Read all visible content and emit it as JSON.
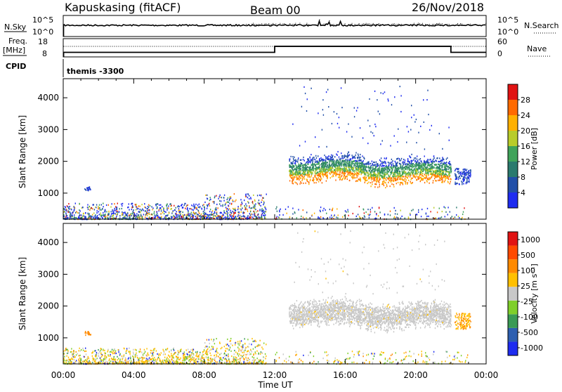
{
  "header": {
    "station": "Kapuskasing (fitACF)",
    "beam": "Beam 00",
    "date": "26/Nov/2018"
  },
  "labels": {
    "nsky": "N.Sky",
    "nsearch": "N.Search",
    "freq_line1": "Freq.",
    "freq_line2": "[MHz]",
    "nave": "Nave",
    "cpid": "CPID",
    "cpid_value": "themis -3300",
    "slant_range": "Slant Range [km]",
    "time_axis": "Time UT",
    "power_cb": "Power [dB]",
    "velocity_cb": "Velocity [m s⁻¹]"
  },
  "chart_data": [
    {
      "type": "line",
      "name": "noise-panel",
      "ylim_left_labels": [
        "10^5",
        "10^0"
      ],
      "ylim_right_labels": [
        "10^5",
        "10^0"
      ],
      "series": [
        {
          "name": "N.Sky",
          "style": "solid"
        },
        {
          "name": "N.Search",
          "style": "dotted"
        }
      ]
    },
    {
      "type": "line",
      "name": "freq-nave-panel",
      "left_ticks": [
        "18",
        "8"
      ],
      "right_ticks": [
        "60",
        "0"
      ],
      "freq_mhz_segments": [
        {
          "start_h": 0,
          "end_h": 12,
          "value": 10.5
        },
        {
          "start_h": 12,
          "end_h": 22,
          "value": 13.8
        },
        {
          "start_h": 22,
          "end_h": 24,
          "value": 10.5
        }
      ]
    },
    {
      "type": "heatmap",
      "name": "power-panel",
      "x_ticks": [
        "00:00",
        "04:00",
        "08:00",
        "12:00",
        "16:00",
        "20:00",
        "00:00"
      ],
      "xlim_hours": [
        0,
        24
      ],
      "y_ticks": [
        1000,
        2000,
        3000,
        4000
      ],
      "ylim_km": [
        180,
        4600
      ],
      "colorbar_ticks": [
        "4",
        "8",
        "12",
        "16",
        "20",
        "24",
        "28"
      ],
      "colorbar_colors": [
        "#1e2cf0",
        "#214fa8",
        "#2a7a6e",
        "#3fa35a",
        "#b8cc2a",
        "#ffb000",
        "#ff6a00",
        "#e11313"
      ]
    },
    {
      "type": "heatmap",
      "name": "velocity-panel",
      "x_ticks": [
        "00:00",
        "04:00",
        "08:00",
        "12:00",
        "16:00",
        "20:00",
        "00:00"
      ],
      "xlim_hours": [
        0,
        24
      ],
      "y_ticks": [
        1000,
        2000,
        3000,
        4000
      ],
      "ylim_km": [
        180,
        4600
      ],
      "colorbar_ticks": [
        "1000",
        "500",
        "100",
        "25",
        "-25",
        "-100",
        "-500",
        "-1000"
      ],
      "colorbar_colors": [
        "#1e2cf0",
        "#2d5fb0",
        "#3a9a55",
        "#7fcf2a",
        "#c8c8c8",
        "#ffc000",
        "#ff8a00",
        "#ff4a00",
        "#e11313"
      ]
    }
  ]
}
